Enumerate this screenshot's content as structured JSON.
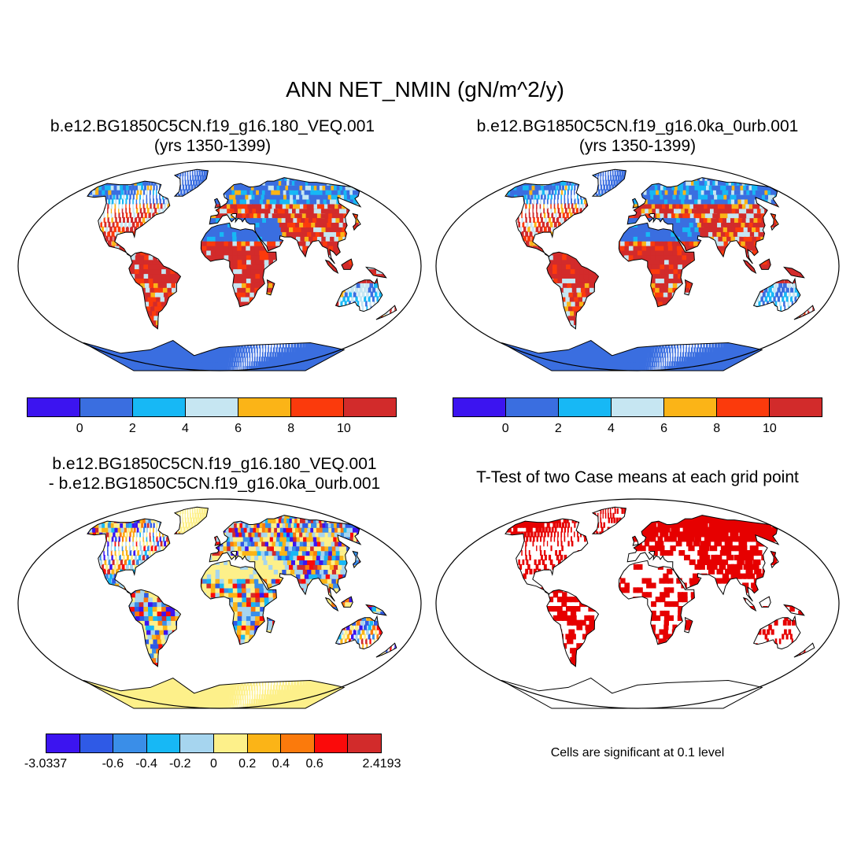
{
  "figure": {
    "title": "ANN NET_NMIN (gN/m^2/y)"
  },
  "panels": {
    "case1": {
      "title_line1": "b.e12.BG1850C5CN.f19_g16.180_VEQ.001",
      "title_line2": "(yrs 1350-1399)"
    },
    "case2": {
      "title_line1": "b.e12.BG1850C5CN.f19_g16.0ka_0urb.001",
      "title_line2": "(yrs 1350-1399)"
    },
    "diff": {
      "title_line1": "b.e12.BG1850C5CN.f19_g16.180_VEQ.001",
      "title_line2": "- b.e12.BG1850C5CN.f19_g16.0ka_0urb.001"
    },
    "ttest": {
      "title": "T-Test of two Case means at each grid point",
      "note": "Cells are significant at 0.1 level"
    }
  },
  "colorbars": {
    "absolute": {
      "colors": [
        "#3c14f0",
        "#3a6ee0",
        "#17b8f5",
        "#c6e6f2",
        "#fbb417",
        "#fb3a0c",
        "#d22b2b"
      ],
      "tick_labels": [
        "0",
        "2",
        "4",
        "6",
        "8",
        "10"
      ]
    },
    "difference": {
      "colors": [
        "#3c14f0",
        "#2f5ae6",
        "#3a8ee8",
        "#17b8f5",
        "#a6d5ef",
        "#fdf08a",
        "#fbb417",
        "#fb7a0c",
        "#fb0a0a",
        "#d22b2b"
      ],
      "tick_labels": [
        "-3.0337",
        "-0.6",
        "-0.4",
        "-0.2",
        "0",
        "0.2",
        "0.4",
        "0.6",
        "2.4193"
      ]
    }
  },
  "palette": {
    "ocean": "#ffffff",
    "coastline": "#000000",
    "significant": "#e60000"
  }
}
